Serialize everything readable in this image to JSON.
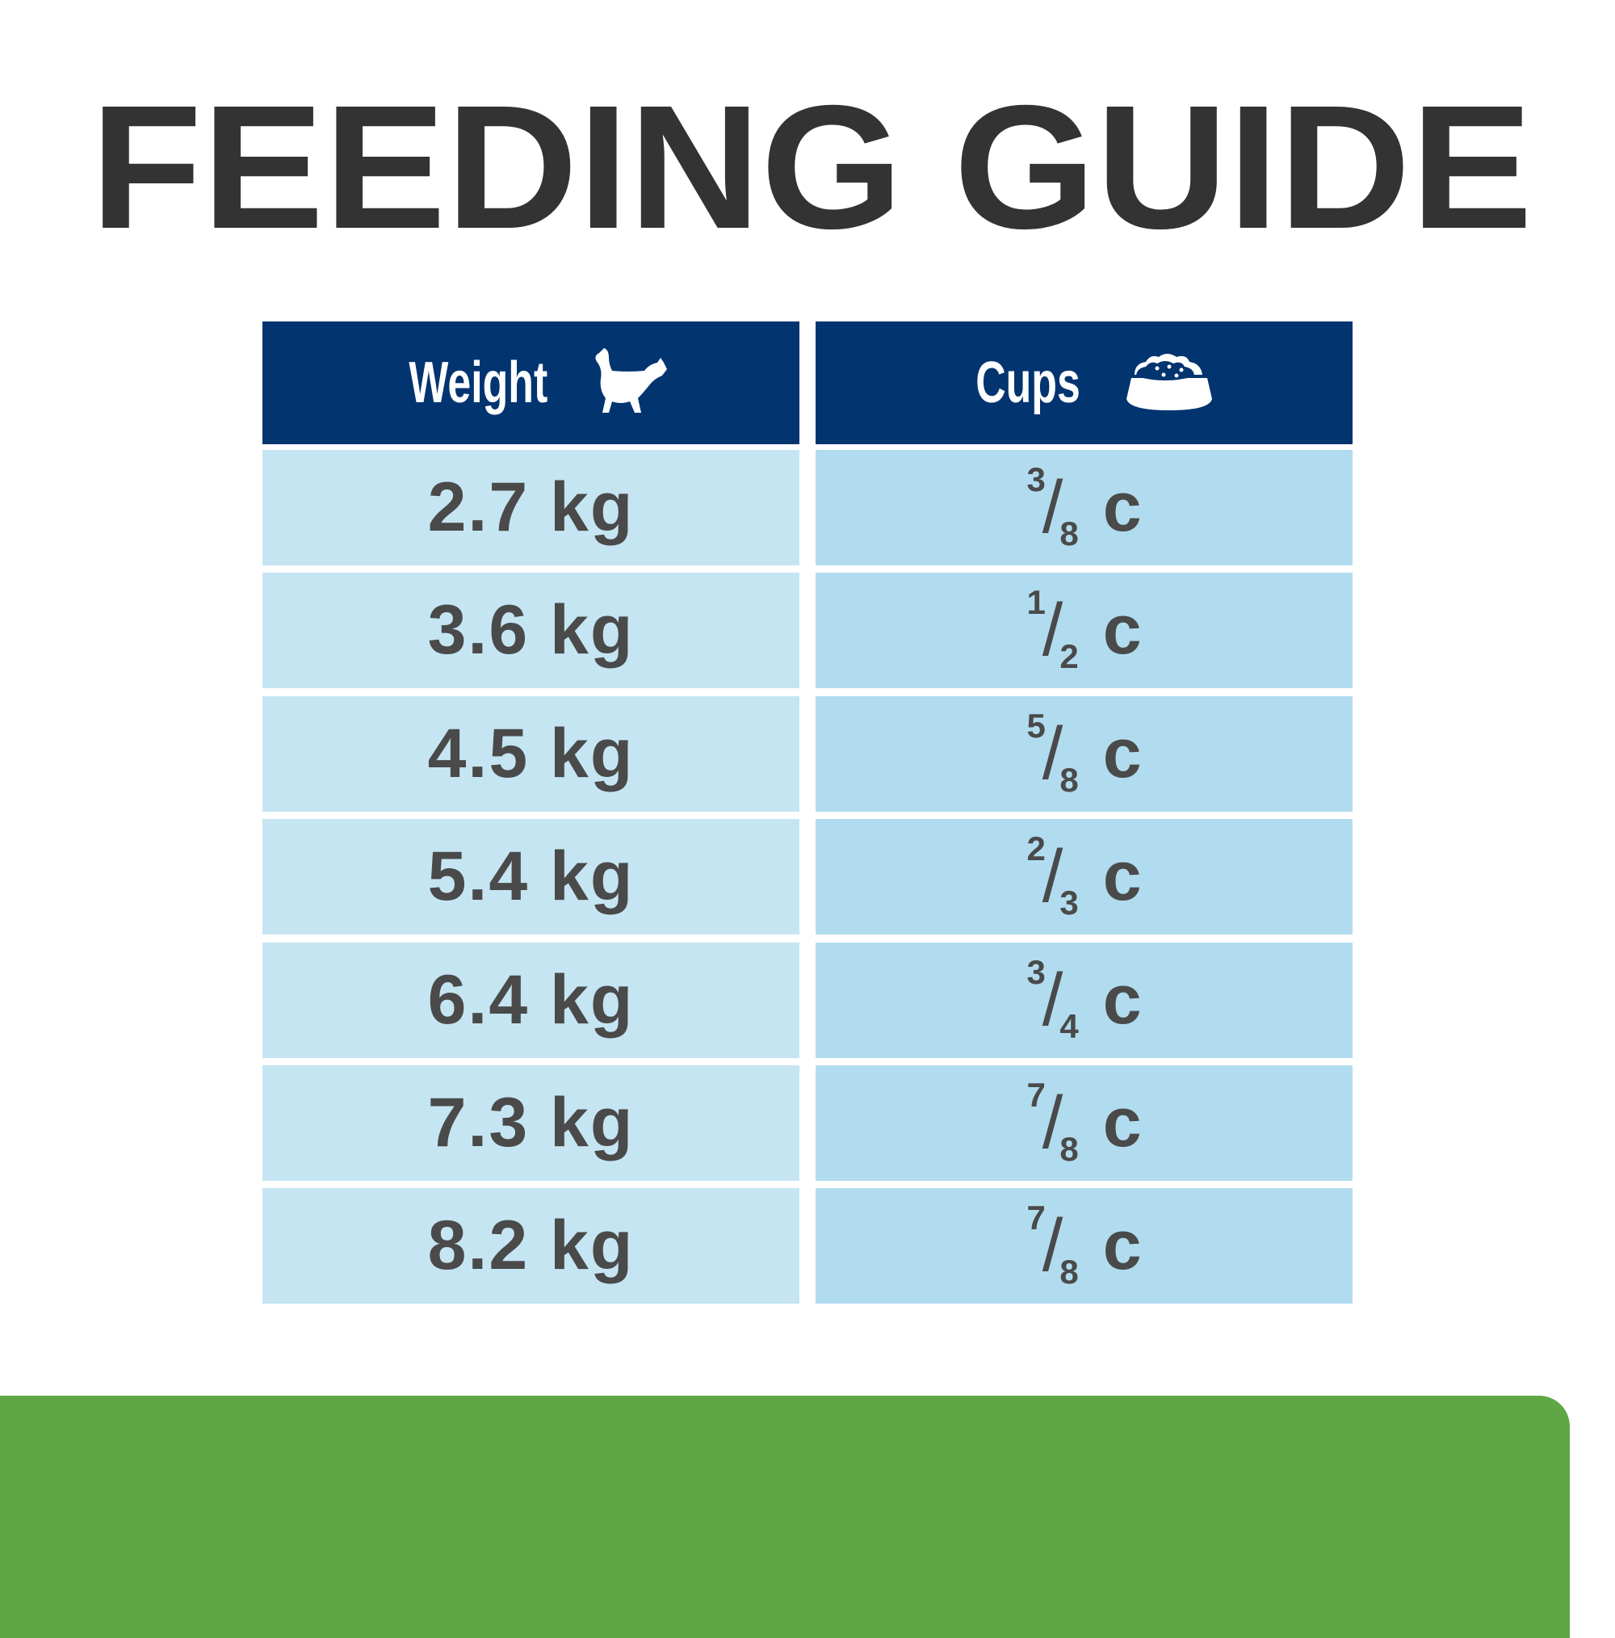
{
  "title": "FEEDING GUIDE",
  "header": {
    "weight_label": "Weight",
    "weight_icon": "cat-icon",
    "cups_label": "Cups",
    "cups_icon": "food-bowl-icon"
  },
  "rows": [
    {
      "weight": "2.7 kg",
      "num": "3",
      "den": "8",
      "unit": "c"
    },
    {
      "weight": "3.6 kg",
      "num": "1",
      "den": "2",
      "unit": "c"
    },
    {
      "weight": "4.5 kg",
      "num": "5",
      "den": "8",
      "unit": "c"
    },
    {
      "weight": "5.4 kg",
      "num": "2",
      "den": "3",
      "unit": "c"
    },
    {
      "weight": "6.4 kg",
      "num": "3",
      "den": "4",
      "unit": "c"
    },
    {
      "weight": "7.3 kg",
      "num": "7",
      "den": "8",
      "unit": "c"
    },
    {
      "weight": "8.2 kg",
      "num": "7",
      "den": "8",
      "unit": "c"
    }
  ],
  "colors": {
    "header": "#023470",
    "weight_cell": "#c5e5f3",
    "cups_cell": "#b1dcef",
    "text": "#4a4a4a",
    "footer": "#5fa744"
  }
}
